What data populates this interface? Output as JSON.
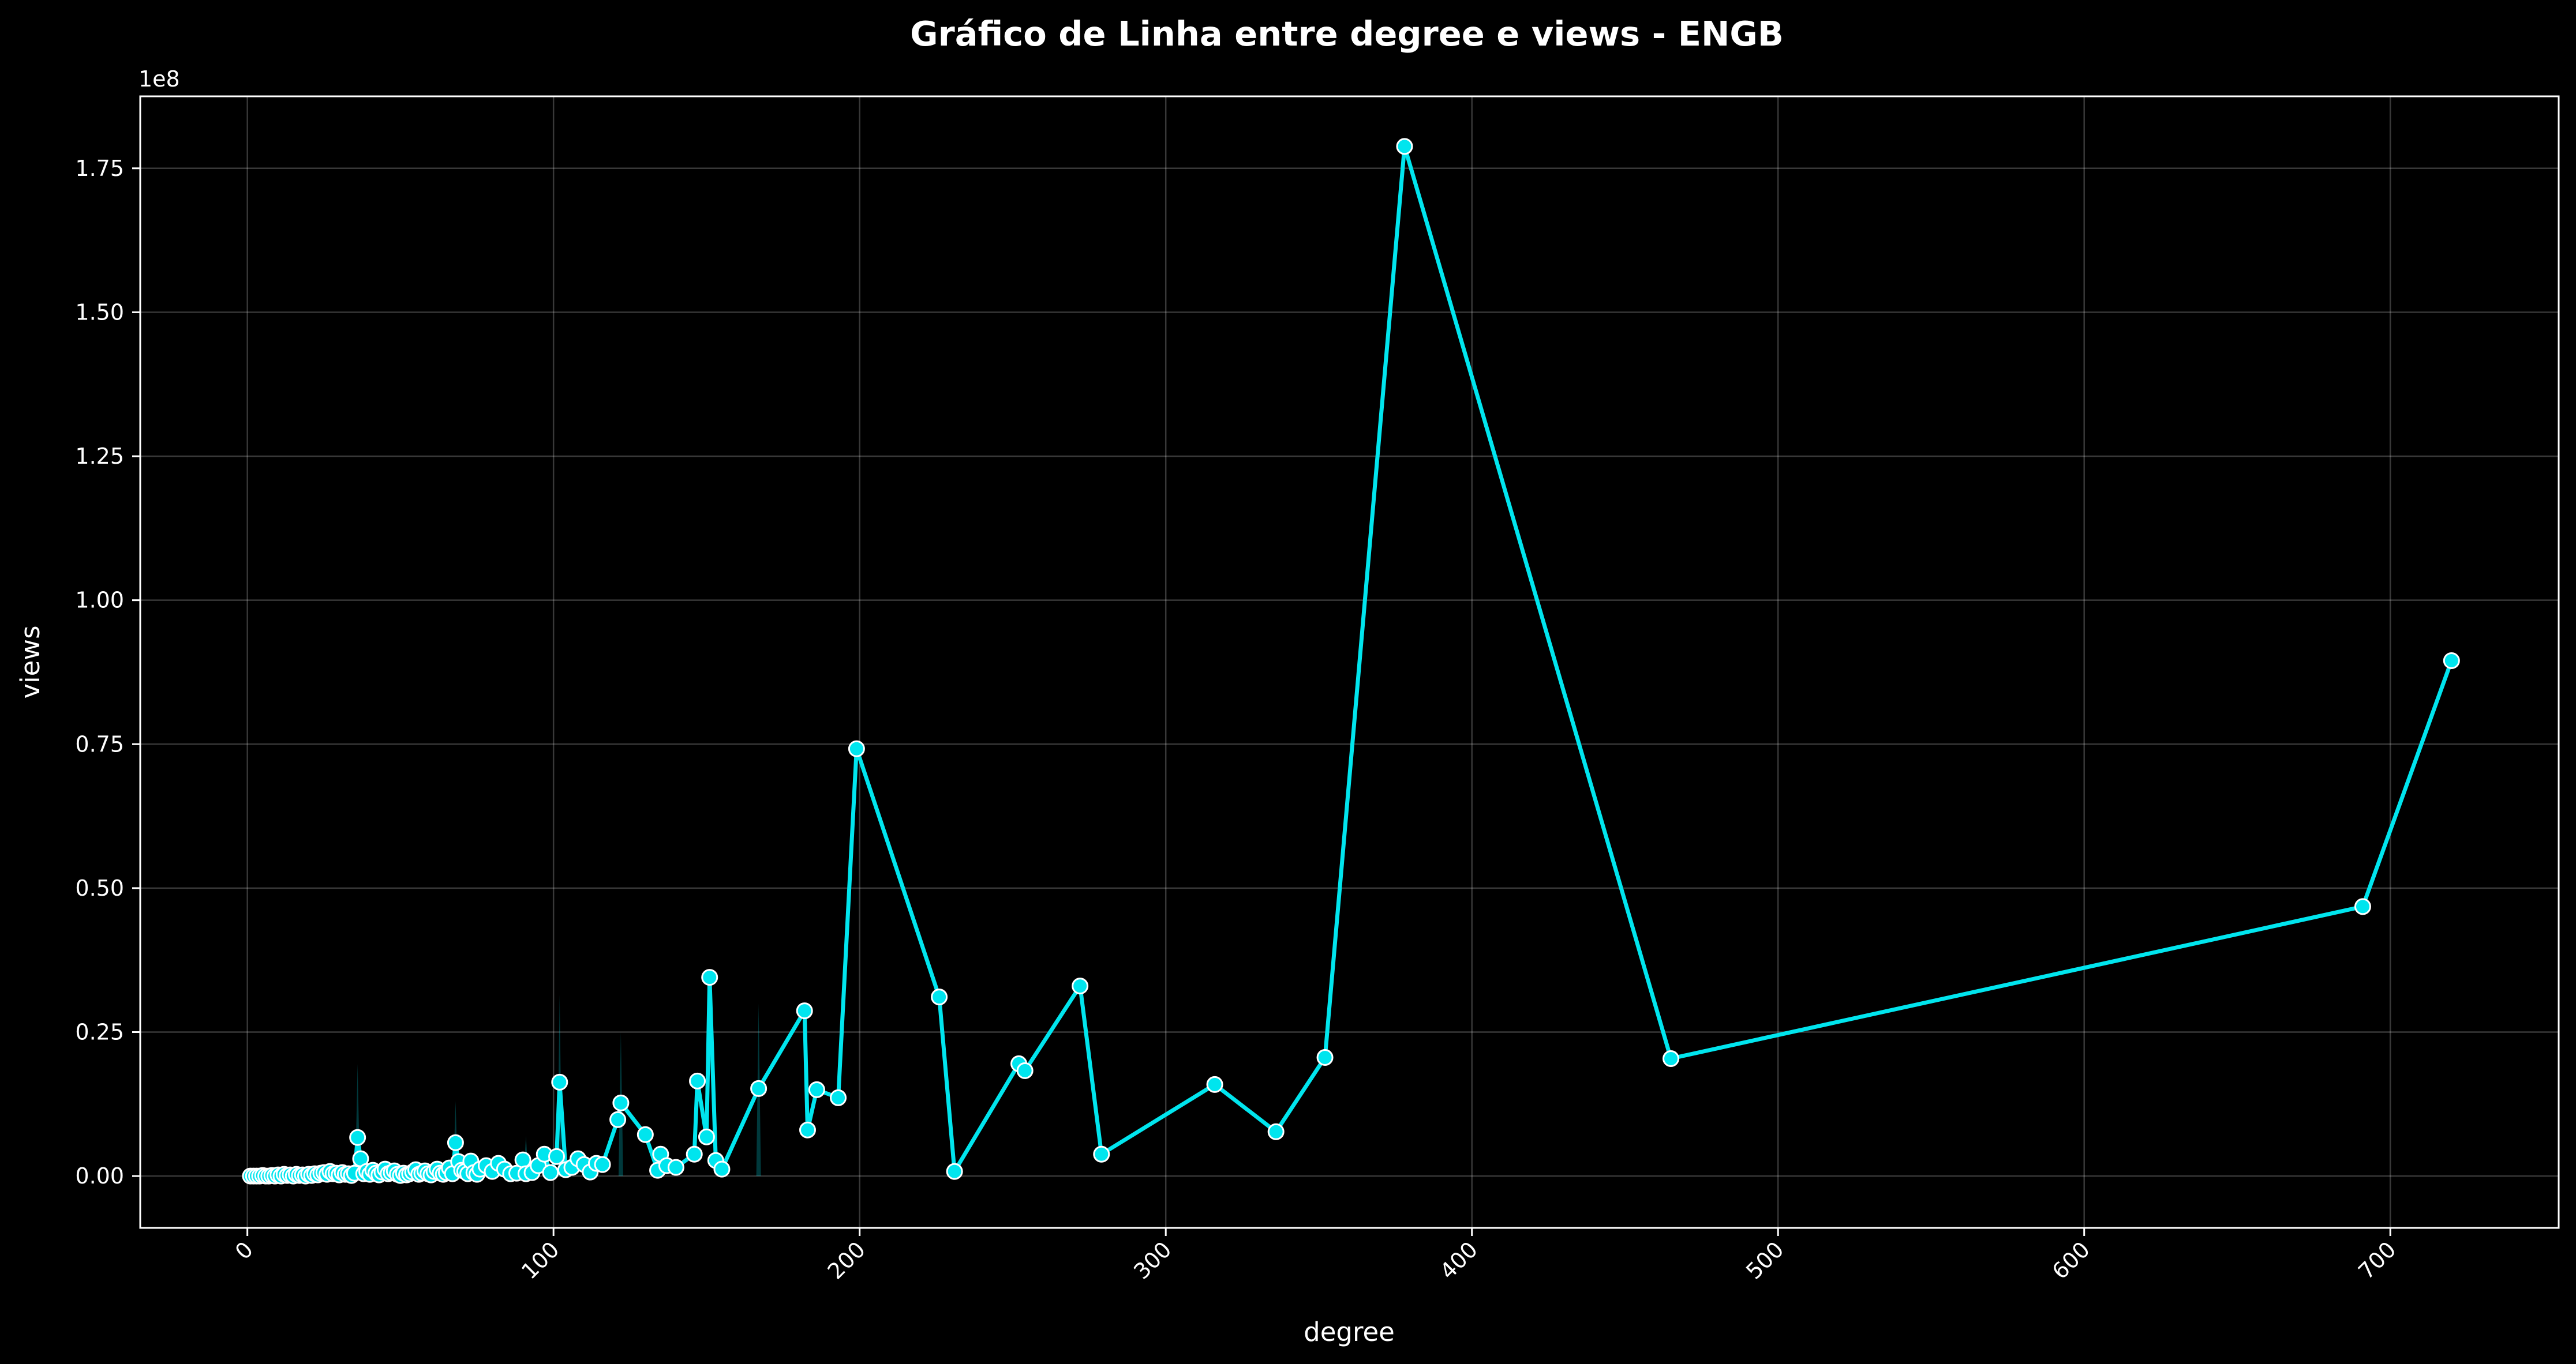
{
  "chart_data": {
    "type": "line",
    "title": "Gráfico de Linha entre degree e views - ENGB",
    "xlabel": "degree",
    "ylabel": "views",
    "y_offset_label": "1e8",
    "xlim": [
      -35,
      755
    ],
    "ylim": [
      -0.09,
      1.875
    ],
    "y_scale": 100000000,
    "x_ticks": [
      0,
      100,
      200,
      300,
      400,
      500,
      600,
      700
    ],
    "x_tick_labels": [
      "0",
      "100",
      "200",
      "300",
      "400",
      "500",
      "600",
      "700"
    ],
    "y_ticks": [
      0.0,
      0.25,
      0.5,
      0.75,
      1.0,
      1.25,
      1.5,
      1.75
    ],
    "y_tick_labels": [
      "0.00",
      "0.25",
      "0.50",
      "0.75",
      "1.00",
      "1.25",
      "1.50",
      "1.75"
    ],
    "grid": true,
    "colors": {
      "background": "#000000",
      "line": "#00e5ee",
      "marker_edge": "#ffffff",
      "band": "#00e5ee"
    },
    "series": [
      {
        "x": [
          1,
          2,
          3,
          4,
          5,
          6,
          7,
          8,
          9,
          10,
          11,
          12,
          13,
          14,
          15,
          16,
          17,
          18,
          19,
          20,
          21,
          22,
          23,
          24,
          25,
          26,
          27,
          28,
          29,
          30,
          31,
          32,
          33,
          34,
          35,
          36,
          37,
          38,
          39,
          40,
          41,
          42,
          43,
          44,
          45,
          46,
          47,
          48,
          49,
          50,
          51,
          52,
          53,
          54,
          55,
          56,
          57,
          58,
          59,
          60,
          61,
          62,
          63,
          64,
          65,
          66,
          67,
          68,
          69,
          70,
          71,
          72,
          73,
          74,
          75,
          76,
          78,
          80,
          82,
          84,
          86,
          88,
          90,
          91,
          93,
          95,
          97,
          99,
          101,
          102,
          104,
          106,
          108,
          110,
          112,
          114,
          116,
          121,
          122,
          130,
          134,
          135,
          137,
          140,
          146,
          147,
          150,
          151,
          153,
          155,
          167,
          182,
          183,
          186,
          193,
          199,
          226,
          231,
          252,
          254,
          272,
          279,
          316,
          336,
          352,
          378,
          465,
          691,
          720
        ],
        "y": [
          0.0,
          0.0,
          0.0,
          0.0,
          0.001,
          0.0,
          0.0,
          0.001,
          0.0,
          0.002,
          0.0,
          0.003,
          0.001,
          0.002,
          0.0,
          0.003,
          0.001,
          0.002,
          0.0,
          0.003,
          0.001,
          0.004,
          0.002,
          0.005,
          0.006,
          0.003,
          0.008,
          0.004,
          0.005,
          0.002,
          0.006,
          0.003,
          0.004,
          0.001,
          0.005,
          0.067,
          0.03,
          0.004,
          0.008,
          0.003,
          0.01,
          0.005,
          0.002,
          0.007,
          0.012,
          0.004,
          0.006,
          0.009,
          0.003,
          0.001,
          0.005,
          0.002,
          0.004,
          0.007,
          0.011,
          0.003,
          0.005,
          0.009,
          0.004,
          0.002,
          0.008,
          0.012,
          0.005,
          0.003,
          0.006,
          0.014,
          0.004,
          0.058,
          0.025,
          0.01,
          0.008,
          0.004,
          0.026,
          0.006,
          0.003,
          0.012,
          0.018,
          0.008,
          0.022,
          0.012,
          0.004,
          0.005,
          0.028,
          0.004,
          0.006,
          0.018,
          0.038,
          0.006,
          0.034,
          0.163,
          0.011,
          0.015,
          0.03,
          0.02,
          0.007,
          0.022,
          0.02,
          0.098,
          0.127,
          0.072,
          0.01,
          0.038,
          0.018,
          0.015,
          0.038,
          0.165,
          0.068,
          0.345,
          0.027,
          0.012,
          0.152,
          0.287,
          0.08,
          0.15,
          0.136,
          0.742,
          0.311,
          0.008,
          0.195,
          0.183,
          0.33,
          0.038,
          0.159,
          0.077,
          0.206,
          1.788,
          0.204,
          0.468,
          0.895
        ]
      }
    ],
    "bands": [
      {
        "x": 36,
        "low": 0.0,
        "high": 0.195
      },
      {
        "x": 68,
        "low": 0.0,
        "high": 0.13
      },
      {
        "x": 91,
        "low": 0.0,
        "high": 0.07
      },
      {
        "x": 102,
        "low": 0.0,
        "high": 0.315
      },
      {
        "x": 122,
        "low": 0.0,
        "high": 0.25
      },
      {
        "x": 167,
        "low": 0.0,
        "high": 0.3
      }
    ]
  }
}
